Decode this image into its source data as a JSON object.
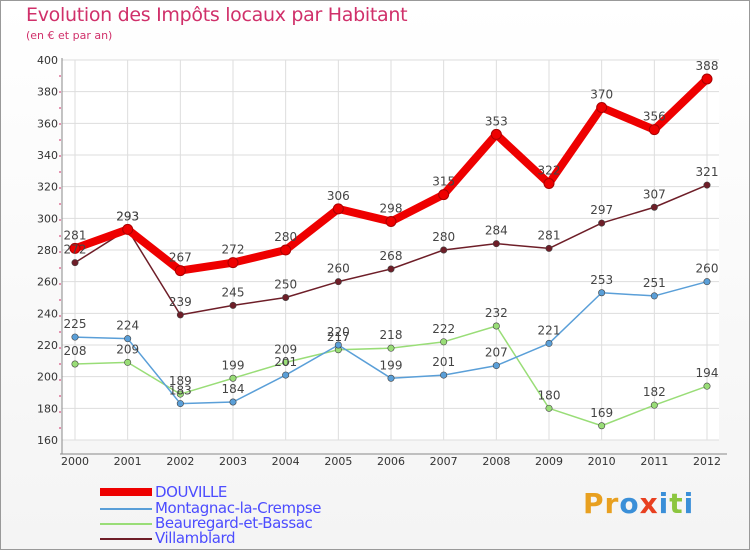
{
  "title": "Evolution des Impôts locaux par Habitant",
  "subtitle": "(en € et par an)",
  "logo": {
    "text": "Proxiti",
    "letters": [
      "P",
      "r",
      "o",
      "x",
      "i",
      "t",
      "i"
    ],
    "colors": [
      "#e8a020",
      "#e8a020",
      "#3a8fd8",
      "#e84020",
      "#3a8fd8",
      "#8cc63f",
      "#3a8fd8"
    ]
  },
  "chart_data": {
    "type": "line",
    "title": "Evolution des Impôts locaux par Habitant",
    "ylabel": "(en € et par an)",
    "xlabel": "",
    "x": [
      "2000",
      "2001",
      "2002",
      "2003",
      "2004",
      "2005",
      "2006",
      "2007",
      "2008",
      "2009",
      "2010",
      "2011",
      "2012"
    ],
    "ylim": [
      160,
      400
    ],
    "yticks": [
      160,
      180,
      200,
      220,
      240,
      260,
      280,
      300,
      320,
      340,
      360,
      380,
      400
    ],
    "grid": true,
    "legend_position": "bottom-left",
    "series": [
      {
        "name": "Villamblard",
        "color": "#6e1e28",
        "values": [
          272,
          293,
          239,
          245,
          250,
          260,
          268,
          280,
          284,
          281,
          297,
          307,
          321
        ],
        "labels": [
          "272",
          "293",
          "239",
          "245",
          "250",
          "260",
          "268",
          "280",
          "284",
          "281",
          "297",
          "307",
          "321"
        ]
      },
      {
        "name": "Beauregard-et-Bassac",
        "color": "#99dd77",
        "values": [
          208,
          209,
          189,
          199,
          209,
          217,
          218,
          222,
          232,
          180,
          169,
          182,
          194
        ],
        "labels": [
          "208",
          "209",
          "189",
          "199",
          "209",
          "217",
          "218",
          "222",
          "232",
          "180",
          "169",
          "182",
          "194"
        ]
      },
      {
        "name": "Montagnac-la-Crempse",
        "color": "#5a9fd8",
        "values": [
          225,
          224,
          183,
          184,
          201,
          220,
          199,
          201,
          207,
          221,
          253,
          251,
          260
        ],
        "labels": [
          "225",
          "224",
          "183",
          "184",
          "201",
          "220",
          "199",
          "201",
          "207",
          "221",
          "253",
          "251",
          "260"
        ]
      },
      {
        "name": "DOUVILLE",
        "color": "#ee0000",
        "values": [
          281,
          293,
          267,
          272,
          280,
          306,
          298,
          315,
          353,
          322,
          370,
          356,
          388
        ],
        "labels": [
          "281",
          "293",
          "267",
          "272",
          "280",
          "306",
          "298",
          "315",
          "353",
          "322",
          "370",
          "356",
          "388"
        ]
      }
    ]
  }
}
